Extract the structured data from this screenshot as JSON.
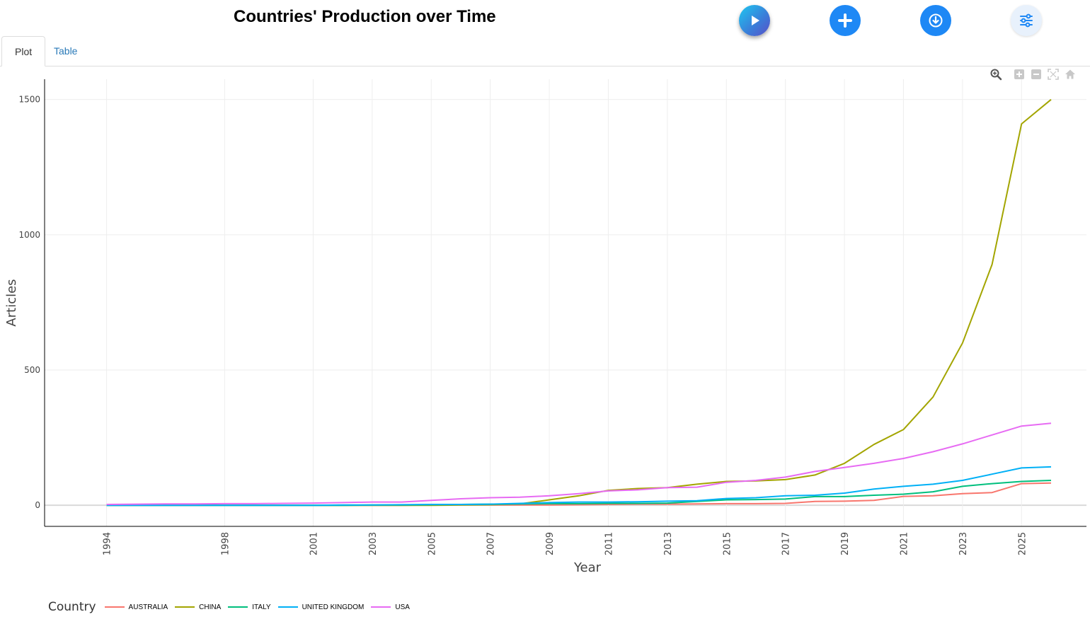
{
  "page": {
    "title": "Countries' Production over Time"
  },
  "toolbar": {
    "play_icon": "play-icon",
    "add_icon": "plus-icon",
    "download_icon": "download-icon",
    "settings_icon": "sliders-icon"
  },
  "tabs": [
    {
      "label": "Plot",
      "active": true
    },
    {
      "label": "Table",
      "active": false
    }
  ],
  "modebar": [
    "zoom-icon",
    "zoom-in-icon",
    "zoom-out-icon",
    "autoscale-icon",
    "reset-axes-icon"
  ],
  "colors": {
    "AUSTRALIA": "#F8766D",
    "CHINA": "#A3A500",
    "ITALY": "#00BF7D",
    "UNITED KINGDOM": "#00B0F6",
    "USA": "#E76BF3"
  },
  "chart_data": {
    "type": "line",
    "title": "Countries' Production over Time",
    "xlabel": "Year",
    "ylabel": "Articles",
    "x": [
      1994,
      1995,
      1996,
      1997,
      1998,
      1999,
      2000,
      2001,
      2002,
      2003,
      2004,
      2005,
      2006,
      2007,
      2008,
      2009,
      2010,
      2011,
      2012,
      2013,
      2014,
      2015,
      2016,
      2017,
      2018,
      2019,
      2020,
      2021,
      2022,
      2023,
      2024,
      2025,
      2026
    ],
    "x_ticks": [
      "1994",
      "1998",
      "2001",
      "2003",
      "2005",
      "2007",
      "2009",
      "2011",
      "2013",
      "2015",
      "2017",
      "2019",
      "2021",
      "2023",
      "2025"
    ],
    "y_ticks": [
      "0",
      "500",
      "1000",
      "1500"
    ],
    "xlim": [
      1991.9,
      2027.2
    ],
    "ylim": [
      -78,
      1575
    ],
    "grid": true,
    "legend_title": "Country",
    "legend_position": "bottom",
    "series": [
      {
        "name": "AUSTRALIA",
        "values": [
          0,
          0,
          0,
          0,
          0,
          0,
          0,
          0,
          0,
          0,
          0,
          1,
          1,
          1,
          1,
          1,
          2,
          3,
          4,
          4,
          5,
          6,
          6,
          7,
          14,
          15,
          18,
          33,
          35,
          43,
          47,
          80,
          82
        ]
      },
      {
        "name": "CHINA",
        "values": [
          0,
          0,
          0,
          0,
          0,
          0,
          0,
          0,
          0,
          0,
          0,
          0,
          1,
          2,
          5,
          20,
          35,
          55,
          62,
          65,
          78,
          88,
          90,
          95,
          112,
          155,
          225,
          280,
          400,
          600,
          890,
          1410,
          1500
        ]
      },
      {
        "name": "ITALY",
        "values": [
          0,
          0,
          0,
          0,
          0,
          0,
          0,
          0,
          0,
          1,
          1,
          2,
          3,
          4,
          5,
          6,
          6,
          7,
          7,
          8,
          14,
          20,
          21,
          23,
          32,
          32,
          37,
          41,
          50,
          70,
          80,
          88,
          92
        ]
      },
      {
        "name": "UNITED KINGDOM",
        "values": [
          0,
          0,
          0,
          0,
          0,
          0,
          0,
          0,
          1,
          1,
          2,
          3,
          3,
          4,
          7,
          10,
          12,
          12,
          13,
          15,
          17,
          25,
          28,
          35,
          37,
          45,
          60,
          70,
          78,
          92,
          115,
          138,
          142
        ]
      },
      {
        "name": "USA",
        "values": [
          3,
          4,
          5,
          5,
          6,
          6,
          7,
          8,
          10,
          12,
          12,
          18,
          24,
          28,
          30,
          35,
          43,
          53,
          57,
          65,
          67,
          85,
          92,
          104,
          125,
          140,
          155,
          173,
          198,
          227,
          260,
          293,
          303
        ]
      }
    ]
  }
}
